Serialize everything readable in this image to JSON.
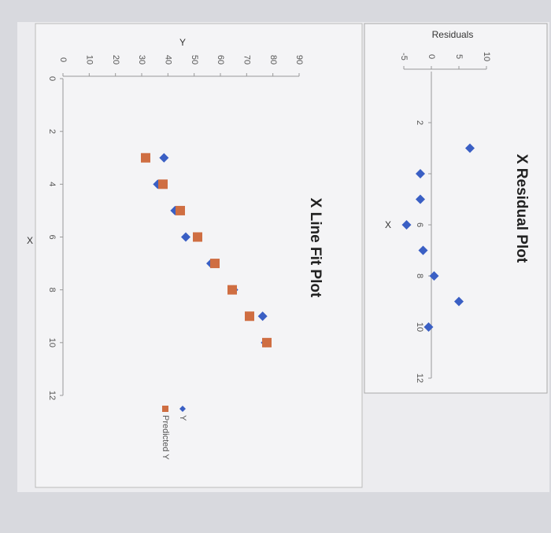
{
  "charts": [
    {
      "type": "scatter",
      "title": "X Residual Plot",
      "x_label": "X",
      "y_label": "Residuals",
      "x": [
        3,
        4,
        5,
        6,
        7,
        8,
        9,
        10
      ],
      "values": [
        7,
        -2,
        -2,
        -4.5,
        -1.5,
        0.5,
        5,
        -0.5
      ],
      "color": "#3a5fc4",
      "marker": "diamond",
      "xlim": [
        0,
        12
      ],
      "xticks": [
        2,
        4,
        6,
        8,
        10,
        12
      ],
      "ylim": [
        -5,
        10
      ],
      "yticks": [
        -5,
        0,
        5,
        10
      ]
    },
    {
      "type": "scatter",
      "title": "X Line Fit Plot",
      "x_label": "X",
      "y_label": "Y",
      "x": [
        3,
        4,
        5,
        6,
        7,
        8,
        9,
        10
      ],
      "series": [
        {
          "name": "Y",
          "color": "#3a5fc4",
          "marker": "diamond",
          "values": [
            38.5,
            36.1,
            42.7,
            46.8,
            56.4,
            65,
            76.1,
            77.2
          ]
        },
        {
          "name": "Predicted Y",
          "color": "#cf6e42",
          "marker": "square",
          "values": [
            31.5,
            38.1,
            44.7,
            51.3,
            57.9,
            64.5,
            71.1,
            77.7
          ]
        }
      ],
      "xlim": [
        0,
        12
      ],
      "xticks": [
        0,
        2,
        4,
        6,
        8,
        10,
        12
      ],
      "ylim": [
        0,
        90
      ],
      "yticks": [
        0,
        10,
        20,
        30,
        40,
        50,
        60,
        70,
        80,
        90
      ]
    }
  ]
}
